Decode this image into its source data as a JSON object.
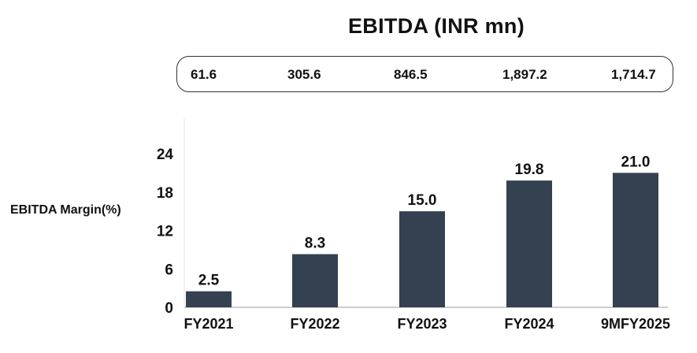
{
  "title": "EBITDA (INR mn)",
  "ebitda_values": [
    "61.6",
    "305.6",
    "846.5",
    "1,897.2",
    "1,714.7"
  ],
  "colors": {
    "bar": "#334150",
    "axis": "#b0b0b0",
    "border": "#333333"
  },
  "chart_data": {
    "type": "bar",
    "title": "EBITDA (INR mn)",
    "xlabel": "",
    "ylabel": "EBITDA Margin(%)",
    "categories": [
      "FY2021",
      "FY2022",
      "FY2023",
      "FY2024",
      "9MFY2025"
    ],
    "values": [
      2.5,
      8.3,
      15.0,
      19.8,
      21.0
    ],
    "data_labels": [
      "2.5",
      "8.3",
      "15.0",
      "19.8",
      "21.0"
    ],
    "yticks": [
      0,
      6,
      12,
      18,
      24
    ],
    "ylim": [
      0,
      24
    ],
    "grid": false
  }
}
